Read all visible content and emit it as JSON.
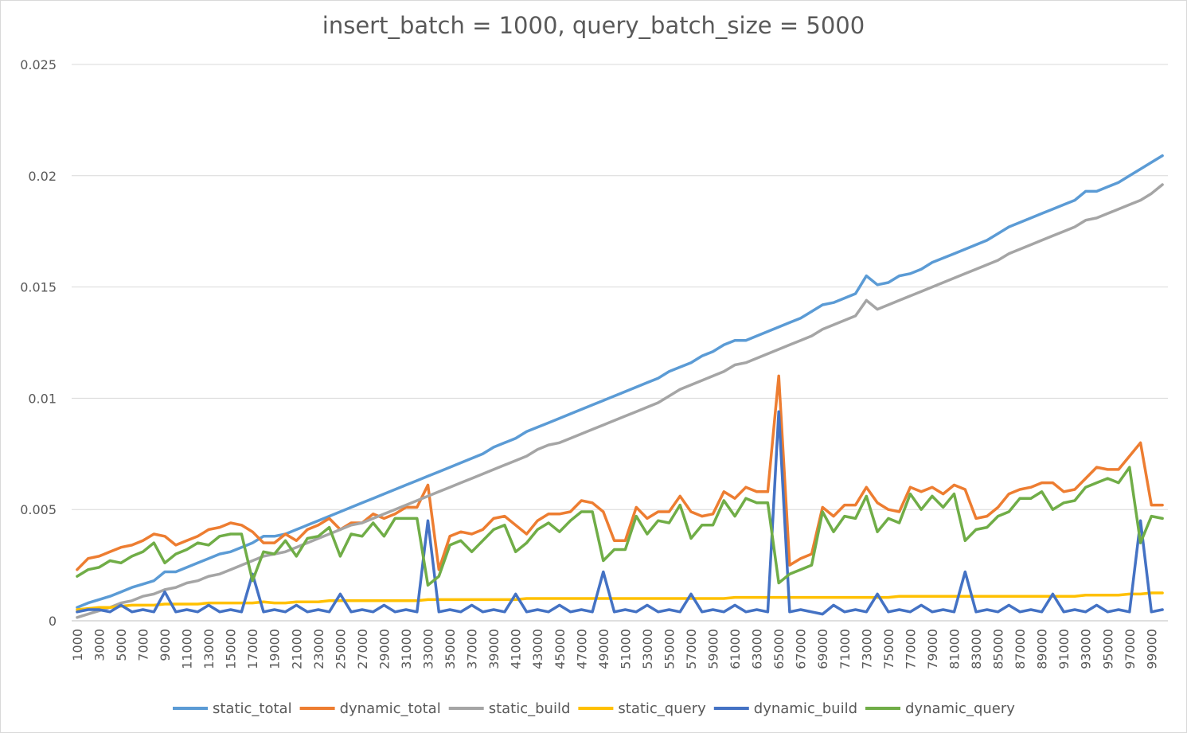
{
  "chart_data": {
    "type": "line",
    "title": "insert_batch = 1000, query_batch_size = 5000",
    "xlabel": "",
    "ylabel": "",
    "ylim": [
      0,
      0.025
    ],
    "yticks": [
      0,
      0.005,
      0.01,
      0.015,
      0.02,
      0.025
    ],
    "ytick_labels": [
      "0",
      "0.005",
      "0.01",
      "0.015",
      "0.02",
      "0.025"
    ],
    "x_start": 1000,
    "x_step": 1000,
    "x_count": 100,
    "xtick_labels": [
      "1000",
      "3000",
      "5000",
      "7000",
      "9000",
      "11000",
      "13000",
      "15000",
      "17000",
      "19000",
      "21000",
      "23000",
      "25000",
      "27000",
      "29000",
      "31000",
      "33000",
      "35000",
      "37000",
      "39000",
      "41000",
      "43000",
      "45000",
      "47000",
      "49000",
      "51000",
      "53000",
      "55000",
      "57000",
      "59000",
      "61000",
      "63000",
      "65000",
      "67000",
      "69000",
      "71000",
      "73000",
      "75000",
      "77000",
      "79000",
      "81000",
      "83000",
      "85000",
      "87000",
      "89000",
      "91000",
      "93000",
      "95000",
      "97000",
      "99000"
    ],
    "grid": true,
    "legend_position": "bottom",
    "series": [
      {
        "name": "static_total",
        "color": "#5B9BD5",
        "values": [
          0.0006,
          0.0008,
          0.00095,
          0.0011,
          0.0013,
          0.0015,
          0.00165,
          0.0018,
          0.0022,
          0.0022,
          0.0024,
          0.0026,
          0.0028,
          0.003,
          0.0031,
          0.0033,
          0.0035,
          0.0038,
          0.0038,
          0.0039,
          0.0041,
          0.0043,
          0.0045,
          0.0047,
          0.0049,
          0.0051,
          0.0053,
          0.0055,
          0.0057,
          0.0059,
          0.0061,
          0.0063,
          0.0065,
          0.0067,
          0.0069,
          0.0071,
          0.0073,
          0.0075,
          0.0078,
          0.008,
          0.0082,
          0.0085,
          0.0087,
          0.0089,
          0.0091,
          0.0093,
          0.0095,
          0.0097,
          0.0099,
          0.0101,
          0.0103,
          0.0105,
          0.0107,
          0.0109,
          0.0112,
          0.0114,
          0.0116,
          0.0119,
          0.0121,
          0.0124,
          0.0126,
          0.0126,
          0.0128,
          0.013,
          0.0132,
          0.0134,
          0.0136,
          0.0139,
          0.0142,
          0.0143,
          0.0145,
          0.0147,
          0.0155,
          0.0151,
          0.0152,
          0.0155,
          0.0156,
          0.0158,
          0.0161,
          0.0163,
          0.0165,
          0.0167,
          0.0169,
          0.0171,
          0.0174,
          0.0177,
          0.0179,
          0.0181,
          0.0183,
          0.0185,
          0.0187,
          0.0189,
          0.0193,
          0.0193,
          0.0195,
          0.0197,
          0.02,
          0.0203,
          0.0206,
          0.0209
        ]
      },
      {
        "name": "dynamic_total",
        "color": "#ED7D31",
        "values": [
          0.0023,
          0.0028,
          0.0029,
          0.0031,
          0.0033,
          0.0034,
          0.0036,
          0.0039,
          0.0038,
          0.0034,
          0.0036,
          0.0038,
          0.0041,
          0.0042,
          0.0044,
          0.0043,
          0.004,
          0.0035,
          0.0035,
          0.0039,
          0.0036,
          0.0041,
          0.0043,
          0.0046,
          0.0041,
          0.0044,
          0.0044,
          0.0048,
          0.0046,
          0.0048,
          0.0051,
          0.0051,
          0.0061,
          0.0023,
          0.0038,
          0.004,
          0.0039,
          0.0041,
          0.0046,
          0.0047,
          0.0043,
          0.0039,
          0.0045,
          0.0048,
          0.0048,
          0.0049,
          0.0054,
          0.0053,
          0.0049,
          0.0036,
          0.0036,
          0.0051,
          0.0046,
          0.0049,
          0.0049,
          0.0056,
          0.0049,
          0.0047,
          0.0048,
          0.0058,
          0.0055,
          0.006,
          0.0058,
          0.0058,
          0.011,
          0.0025,
          0.0028,
          0.003,
          0.0051,
          0.0047,
          0.0052,
          0.0052,
          0.006,
          0.0053,
          0.005,
          0.0049,
          0.006,
          0.0058,
          0.006,
          0.0057,
          0.0061,
          0.0059,
          0.0046,
          0.0047,
          0.0051,
          0.0057,
          0.0059,
          0.006,
          0.0062,
          0.0062,
          0.0058,
          0.0059,
          0.0064,
          0.0069,
          0.0068,
          0.0068,
          0.0074,
          0.008,
          0.0052,
          0.0052
        ]
      },
      {
        "name": "static_build",
        "color": "#A5A5A5",
        "values": [
          0.00015,
          0.0003,
          0.00045,
          0.0006,
          0.0008,
          0.0009,
          0.0011,
          0.0012,
          0.0014,
          0.0015,
          0.0017,
          0.0018,
          0.002,
          0.0021,
          0.0023,
          0.0025,
          0.0027,
          0.0029,
          0.003,
          0.0031,
          0.0033,
          0.0035,
          0.0037,
          0.0039,
          0.0041,
          0.0043,
          0.0044,
          0.0046,
          0.0048,
          0.005,
          0.0052,
          0.0054,
          0.0056,
          0.0058,
          0.006,
          0.0062,
          0.0064,
          0.0066,
          0.0068,
          0.007,
          0.0072,
          0.0074,
          0.0077,
          0.0079,
          0.008,
          0.0082,
          0.0084,
          0.0086,
          0.0088,
          0.009,
          0.0092,
          0.0094,
          0.0096,
          0.0098,
          0.0101,
          0.0104,
          0.0106,
          0.0108,
          0.011,
          0.0112,
          0.0115,
          0.0116,
          0.0118,
          0.012,
          0.0122,
          0.0124,
          0.0126,
          0.0128,
          0.0131,
          0.0133,
          0.0135,
          0.0137,
          0.0144,
          0.014,
          0.0142,
          0.0144,
          0.0146,
          0.0148,
          0.015,
          0.0152,
          0.0154,
          0.0156,
          0.0158,
          0.016,
          0.0162,
          0.0165,
          0.0167,
          0.0169,
          0.0171,
          0.0173,
          0.0175,
          0.0177,
          0.018,
          0.0181,
          0.0183,
          0.0185,
          0.0187,
          0.0189,
          0.0192,
          0.0196
        ]
      },
      {
        "name": "static_query",
        "color": "#FFC000",
        "values": [
          0.0005,
          0.00055,
          0.0006,
          0.0006,
          0.00065,
          0.0007,
          0.0007,
          0.0007,
          0.00075,
          0.00075,
          0.00075,
          0.00075,
          0.0008,
          0.0008,
          0.0008,
          0.0008,
          0.0008,
          0.00085,
          0.0008,
          0.0008,
          0.00085,
          0.00085,
          0.00085,
          0.0009,
          0.0009,
          0.0009,
          0.0009,
          0.0009,
          0.0009,
          0.0009,
          0.0009,
          0.0009,
          0.00095,
          0.00095,
          0.00095,
          0.00095,
          0.00095,
          0.00095,
          0.00095,
          0.00095,
          0.00095,
          0.001,
          0.001,
          0.001,
          0.001,
          0.001,
          0.001,
          0.001,
          0.001,
          0.001,
          0.001,
          0.001,
          0.001,
          0.001,
          0.001,
          0.001,
          0.001,
          0.001,
          0.001,
          0.001,
          0.00105,
          0.00105,
          0.00105,
          0.00105,
          0.00105,
          0.00105,
          0.00105,
          0.00105,
          0.00105,
          0.00105,
          0.00105,
          0.00105,
          0.00105,
          0.00105,
          0.00105,
          0.0011,
          0.0011,
          0.0011,
          0.0011,
          0.0011,
          0.0011,
          0.0011,
          0.0011,
          0.0011,
          0.0011,
          0.0011,
          0.0011,
          0.0011,
          0.0011,
          0.0011,
          0.0011,
          0.0011,
          0.00115,
          0.00115,
          0.00115,
          0.00115,
          0.0012,
          0.0012,
          0.00125,
          0.00125
        ]
      },
      {
        "name": "dynamic_build",
        "color": "#4472C4",
        "values": [
          0.0004,
          0.0005,
          0.0005,
          0.0004,
          0.0007,
          0.0004,
          0.0005,
          0.0004,
          0.0013,
          0.0004,
          0.0005,
          0.0004,
          0.0007,
          0.0004,
          0.0005,
          0.0004,
          0.0021,
          0.0004,
          0.0005,
          0.0004,
          0.0007,
          0.0004,
          0.0005,
          0.0004,
          0.0012,
          0.0004,
          0.0005,
          0.0004,
          0.0007,
          0.0004,
          0.0005,
          0.0004,
          0.0045,
          0.0004,
          0.0005,
          0.0004,
          0.0007,
          0.0004,
          0.0005,
          0.0004,
          0.0012,
          0.0004,
          0.0005,
          0.0004,
          0.0007,
          0.0004,
          0.0005,
          0.0004,
          0.0022,
          0.0004,
          0.0005,
          0.0004,
          0.0007,
          0.0004,
          0.0005,
          0.0004,
          0.0012,
          0.0004,
          0.0005,
          0.0004,
          0.0007,
          0.0004,
          0.0005,
          0.0004,
          0.0094,
          0.0004,
          0.0005,
          0.0004,
          0.0003,
          0.0007,
          0.0004,
          0.0005,
          0.0004,
          0.0012,
          0.0004,
          0.0005,
          0.0004,
          0.0007,
          0.0004,
          0.0005,
          0.0004,
          0.0022,
          0.0004,
          0.0005,
          0.0004,
          0.0007,
          0.0004,
          0.0005,
          0.0004,
          0.0012,
          0.0004,
          0.0005,
          0.0004,
          0.0007,
          0.0004,
          0.0005,
          0.0004,
          0.0045,
          0.0004,
          0.0005
        ]
      },
      {
        "name": "dynamic_query",
        "color": "#70AD47",
        "values": [
          0.002,
          0.0023,
          0.0024,
          0.0027,
          0.0026,
          0.0029,
          0.0031,
          0.0035,
          0.0026,
          0.003,
          0.0032,
          0.0035,
          0.0034,
          0.0038,
          0.0039,
          0.0039,
          0.0018,
          0.0031,
          0.003,
          0.0036,
          0.0029,
          0.0037,
          0.0038,
          0.0042,
          0.0029,
          0.0039,
          0.0038,
          0.0044,
          0.0038,
          0.0046,
          0.0046,
          0.0046,
          0.0016,
          0.002,
          0.0034,
          0.0036,
          0.0031,
          0.0036,
          0.0041,
          0.0043,
          0.0031,
          0.0035,
          0.0041,
          0.0044,
          0.004,
          0.0045,
          0.0049,
          0.0049,
          0.0027,
          0.0032,
          0.0032,
          0.0047,
          0.0039,
          0.0045,
          0.0044,
          0.0052,
          0.0037,
          0.0043,
          0.0043,
          0.0054,
          0.0047,
          0.0055,
          0.0053,
          0.0053,
          0.0017,
          0.0021,
          0.0023,
          0.0025,
          0.0049,
          0.004,
          0.0047,
          0.0046,
          0.0056,
          0.004,
          0.0046,
          0.0044,
          0.0057,
          0.005,
          0.0056,
          0.0051,
          0.0057,
          0.0036,
          0.0041,
          0.0042,
          0.0047,
          0.0049,
          0.0055,
          0.0055,
          0.0058,
          0.005,
          0.0053,
          0.0054,
          0.006,
          0.0062,
          0.0064,
          0.0062,
          0.0069,
          0.0035,
          0.0047,
          0.0046
        ]
      }
    ]
  }
}
